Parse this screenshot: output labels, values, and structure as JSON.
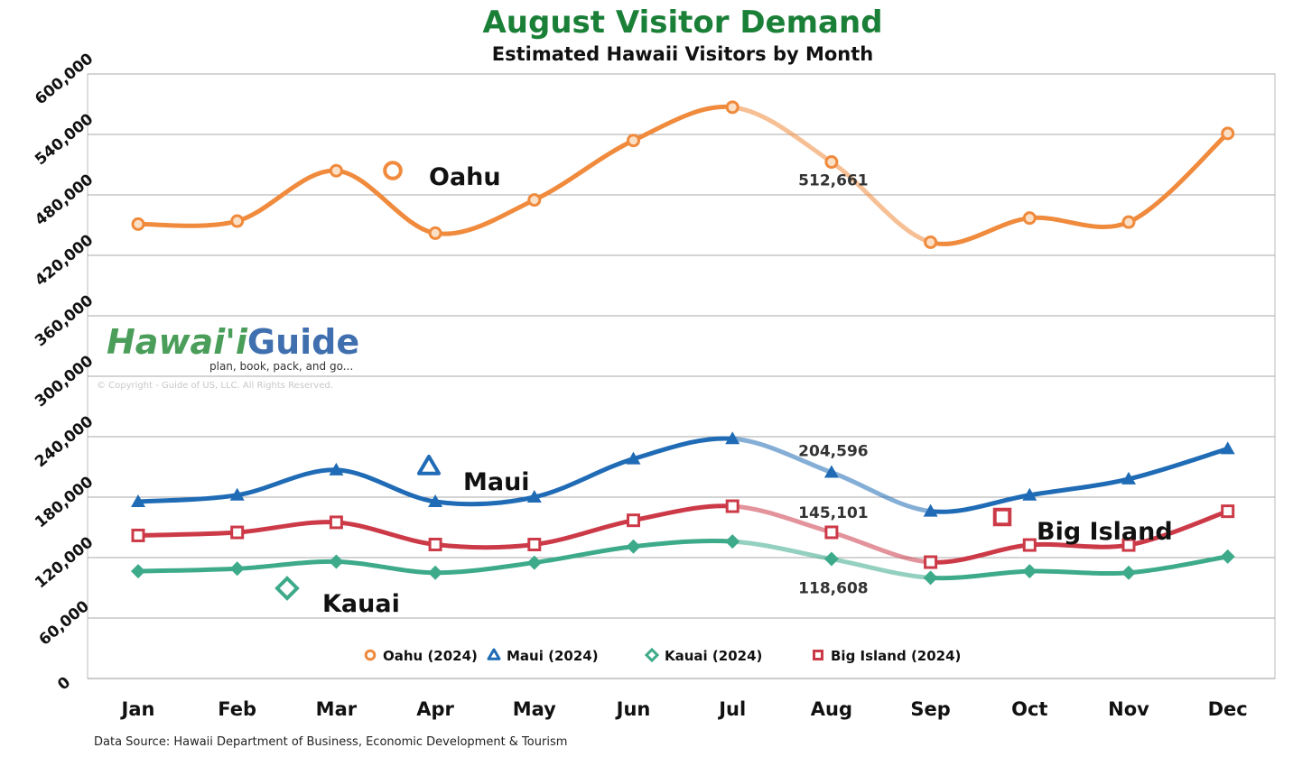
{
  "chart_data": {
    "type": "line",
    "title": "August Visitor Demand",
    "subtitle": "Estimated Hawaii Visitors by Month",
    "categories": [
      "Jan",
      "Feb",
      "Mar",
      "Apr",
      "May",
      "Jun",
      "Jul",
      "Aug",
      "Sep",
      "Oct",
      "Nov",
      "Dec"
    ],
    "ylim": [
      0,
      600000
    ],
    "yticks": [
      "0",
      "60,000",
      "120,000",
      "180,000",
      "240,000",
      "300,000",
      "360,000",
      "420,000",
      "480,000",
      "540,000",
      "600,000"
    ],
    "ytick_values": [
      0,
      60000,
      120000,
      180000,
      240000,
      300000,
      360000,
      420000,
      480000,
      540000,
      600000
    ],
    "grid": true,
    "legend_placement": "bottom",
    "highlight_month": "Aug",
    "series": [
      {
        "name": "Oahu (2024)",
        "label": "Oahu",
        "color": "#f08a3c",
        "marker": "circle",
        "values": [
          451000,
          454000,
          504000,
          442000,
          475000,
          534000,
          567000,
          512661,
          433000,
          457000,
          453000,
          541000
        ],
        "aug_label": "512,661"
      },
      {
        "name": "Maui (2024)",
        "label": "Maui",
        "color": "#1f6bb5",
        "marker": "triangle",
        "values": [
          175500,
          182000,
          207000,
          175500,
          180000,
          218000,
          238000,
          204596,
          166000,
          182000,
          198000,
          228000
        ],
        "aug_label": "204,596"
      },
      {
        "name": "Kauai (2024)",
        "label": "Kauai",
        "color": "#3daa8a",
        "marker": "diamond",
        "values": [
          106500,
          109000,
          116000,
          105000,
          115000,
          131000,
          136000,
          118608,
          100000,
          106500,
          105000,
          121000
        ],
        "aug_label": "118,608"
      },
      {
        "name": "Big Island (2024)",
        "label": "Big Island",
        "color": "#cc3a48",
        "marker": "square",
        "values": [
          142000,
          145000,
          155000,
          133000,
          133000,
          157000,
          171000,
          145101,
          115500,
          132500,
          132500,
          166000
        ],
        "aug_label": "145,101"
      }
    ],
    "title_color": "#1a7f37"
  },
  "logo": {
    "text_left": "Hawai'i",
    "text_right": "Guide",
    "tagline": "plan, book, pack, and go...",
    "copyright": "© Copyright - Guide of US, LLC. All Rights Reserved."
  },
  "source": "Data Source: Hawaii Department of Business, Economic Development & Tourism"
}
